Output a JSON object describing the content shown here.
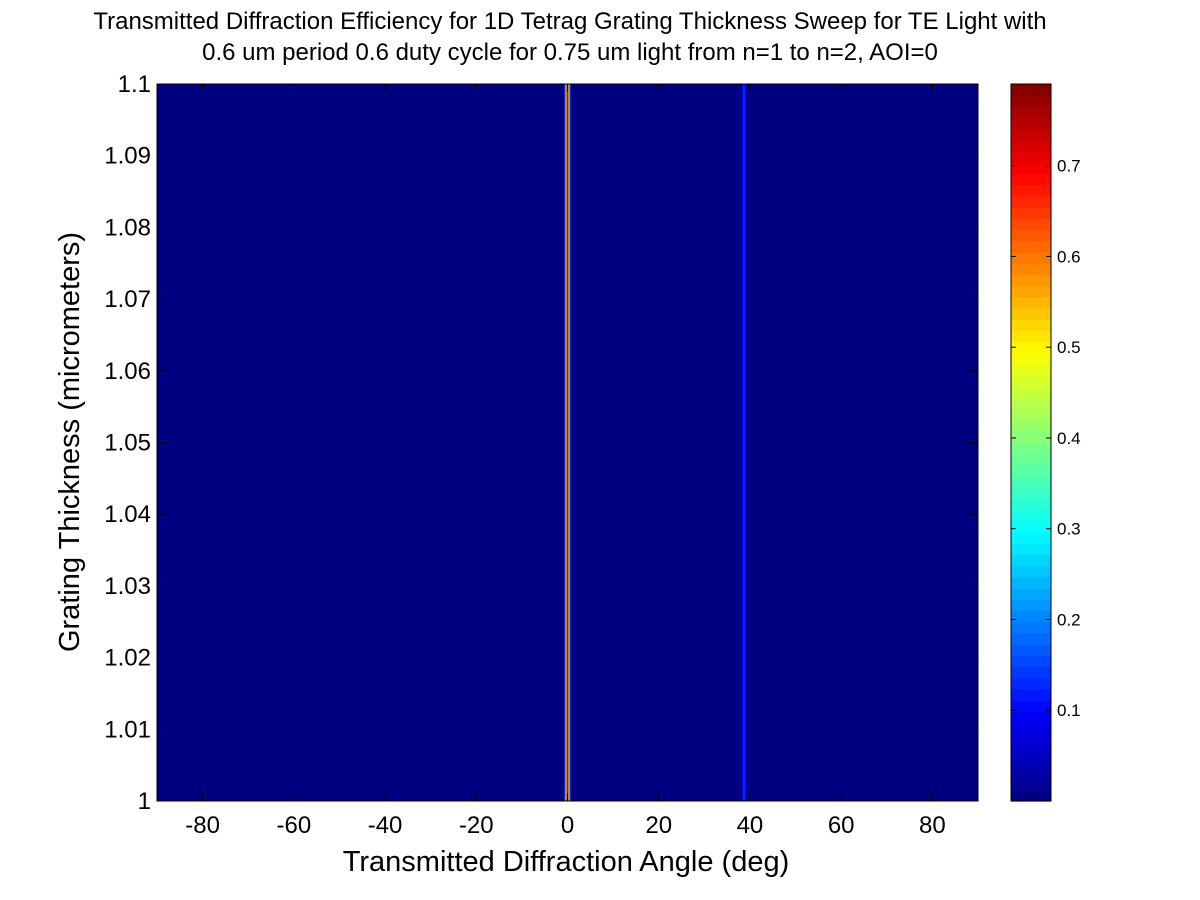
{
  "chart_data": {
    "type": "heatmap",
    "title": [
      "Transmitted Diffraction Efficiency for 1D Tetrag Grating Thickness Sweep for TE Light with",
      "0.6 um period 0.6 duty cycle for 0.75 um light from n=1 to n=2, AOI=0"
    ],
    "xlabel": "Transmitted Diffraction Angle (deg)",
    "ylabel": "Grating Thickness (micrometers)",
    "xlim": [
      -90,
      90
    ],
    "ylim": [
      1.0,
      1.1
    ],
    "x_ticks": [
      "-80",
      "-60",
      "-40",
      "-20",
      "0",
      "20",
      "40",
      "60",
      "80"
    ],
    "y_ticks": [
      "1",
      "1.01",
      "1.02",
      "1.03",
      "1.04",
      "1.05",
      "1.06",
      "1.07",
      "1.08",
      "1.09",
      "1.1"
    ],
    "colormap": "jet",
    "clim": [
      0.0,
      0.79
    ],
    "colorbar_ticks": [
      "0.1",
      "0.2",
      "0.3",
      "0.4",
      "0.5",
      "0.6",
      "0.7"
    ],
    "background_value": 0.0,
    "peaks": [
      {
        "angle_deg": 0.0,
        "efficiency": 0.76
      },
      {
        "angle_deg": 38.7,
        "efficiency": 0.14
      }
    ]
  }
}
